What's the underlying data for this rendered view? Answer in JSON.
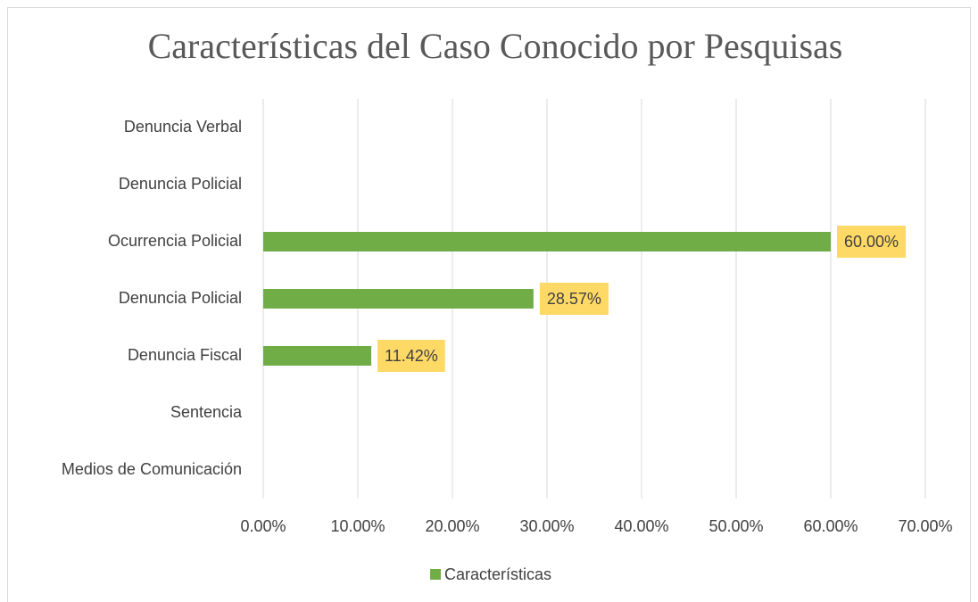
{
  "chart_data": {
    "type": "barh",
    "title": "Características del Caso Conocido por Pesquisas",
    "categories": [
      "Denuncia Verbal",
      "Denuncia Policial",
      "Ocurrencia Policial",
      "Denuncia Policial",
      "Denuncia Fiscal",
      "Sentencia",
      "Medios de Comunicación"
    ],
    "series": [
      {
        "name": "Características",
        "color": "#70ad47",
        "values": [
          null,
          null,
          60,
          28.57,
          11.42,
          null,
          null
        ],
        "value_labels": [
          null,
          null,
          "60.00%",
          "28.57%",
          "11.42%",
          null,
          null
        ]
      }
    ],
    "xlim": [
      0,
      70
    ],
    "xticks": [
      {
        "value": 0,
        "label": "0.00%"
      },
      {
        "value": 10,
        "label": "10.00%"
      },
      {
        "value": 20,
        "label": "20.00%"
      },
      {
        "value": 30,
        "label": "30.00%"
      },
      {
        "value": 40,
        "label": "40.00%"
      },
      {
        "value": 50,
        "label": "50.00%"
      },
      {
        "value": 60,
        "label": "60.00%"
      },
      {
        "value": 70,
        "label": "70.00%"
      }
    ],
    "grid": true,
    "legend": "bottom",
    "label_box_color": "#ffd966"
  }
}
